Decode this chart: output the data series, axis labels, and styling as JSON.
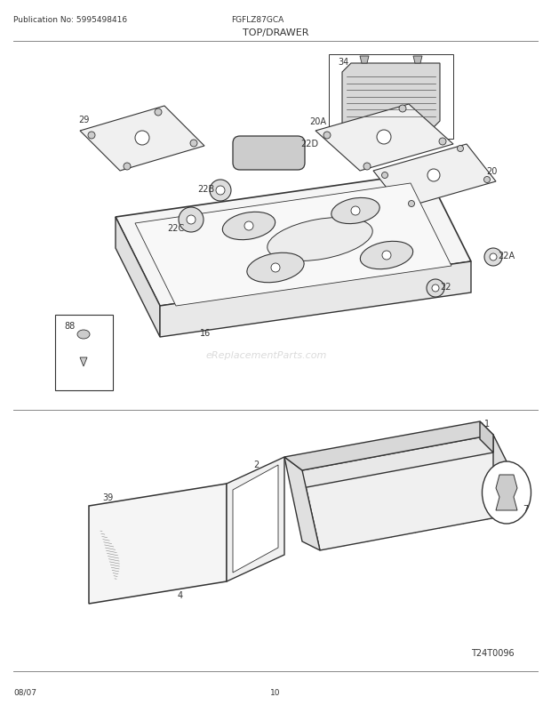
{
  "title": "TOP/DRAWER",
  "model": "FGFLZ87GCA",
  "publication": "Publication No: 5995498416",
  "date": "08/07",
  "page": "10",
  "diagram_ref": "T24T0096",
  "watermark": "eReplacementParts.com",
  "bg_color": "#ffffff",
  "fig_width": 6.2,
  "fig_height": 8.03,
  "line_color": "#333333",
  "lw": 0.8
}
